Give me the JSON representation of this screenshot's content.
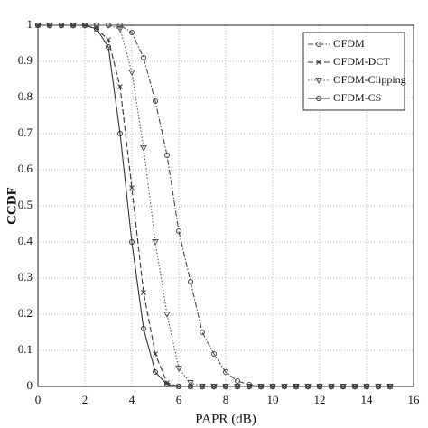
{
  "chart_data": {
    "type": "line",
    "x_label": "PAPR (dB)",
    "y_label": "CCDF",
    "x": [
      0,
      0.5,
      1,
      1.5,
      2,
      2.5,
      3,
      3.5,
      4,
      4.5,
      5,
      5.5,
      6,
      6.5,
      7,
      7.5,
      8,
      8.5,
      9,
      9.5,
      10,
      10.5,
      11,
      11.5,
      12,
      12.5,
      13,
      13.5,
      14,
      14.5,
      15
    ],
    "series": [
      {
        "name": "OFDM",
        "color": "#444444",
        "linestyle": "dashdot",
        "marker": "circle",
        "values": [
          1,
          1,
          1,
          1,
          1,
          1,
          1,
          1,
          0.98,
          0.91,
          0.79,
          0.64,
          0.43,
          0.29,
          0.15,
          0.09,
          0.04,
          0.015,
          0.005,
          0,
          0,
          0,
          0,
          0,
          0,
          0,
          0,
          0,
          0,
          0,
          0
        ]
      },
      {
        "name": "OFDM-DCT",
        "color": "#333333",
        "linestyle": "dashed",
        "marker": "x",
        "values": [
          1,
          1,
          1,
          1,
          1,
          0.99,
          0.96,
          0.83,
          0.55,
          0.26,
          0.09,
          0.01,
          0,
          0,
          0,
          0,
          0,
          0,
          0,
          0,
          0,
          0,
          0,
          0,
          0,
          0,
          0,
          0,
          0,
          0,
          0
        ]
      },
      {
        "name": "OFDM-Clipping",
        "color": "#555555",
        "linestyle": "dotted",
        "marker": "triangle",
        "values": [
          1,
          1,
          1,
          1,
          1,
          1,
          1,
          0.99,
          0.87,
          0.66,
          0.4,
          0.2,
          0.05,
          0.01,
          0,
          0,
          0,
          0,
          0,
          0,
          0,
          0,
          0,
          0,
          0,
          0,
          0,
          0,
          0,
          0,
          0
        ]
      },
      {
        "name": "OFDM-CS",
        "color": "#333333",
        "linestyle": "solid",
        "marker": "circle",
        "values": [
          1,
          1,
          1,
          1,
          1,
          0.99,
          0.94,
          0.7,
          0.4,
          0.16,
          0.04,
          0.005,
          0,
          0,
          0,
          0,
          0,
          0,
          0,
          0,
          0,
          0,
          0,
          0,
          0,
          0,
          0,
          0,
          0,
          0,
          0
        ]
      }
    ],
    "xlim": [
      0,
      16
    ],
    "ylim": [
      0,
      1
    ],
    "xticks": [
      0,
      2,
      4,
      6,
      8,
      10,
      12,
      14,
      16
    ],
    "yticks": [
      0,
      0.1,
      0.2,
      0.3,
      0.4,
      0.5,
      0.6,
      0.7,
      0.8,
      0.9,
      1
    ],
    "grid": true,
    "legend": "upper right"
  }
}
